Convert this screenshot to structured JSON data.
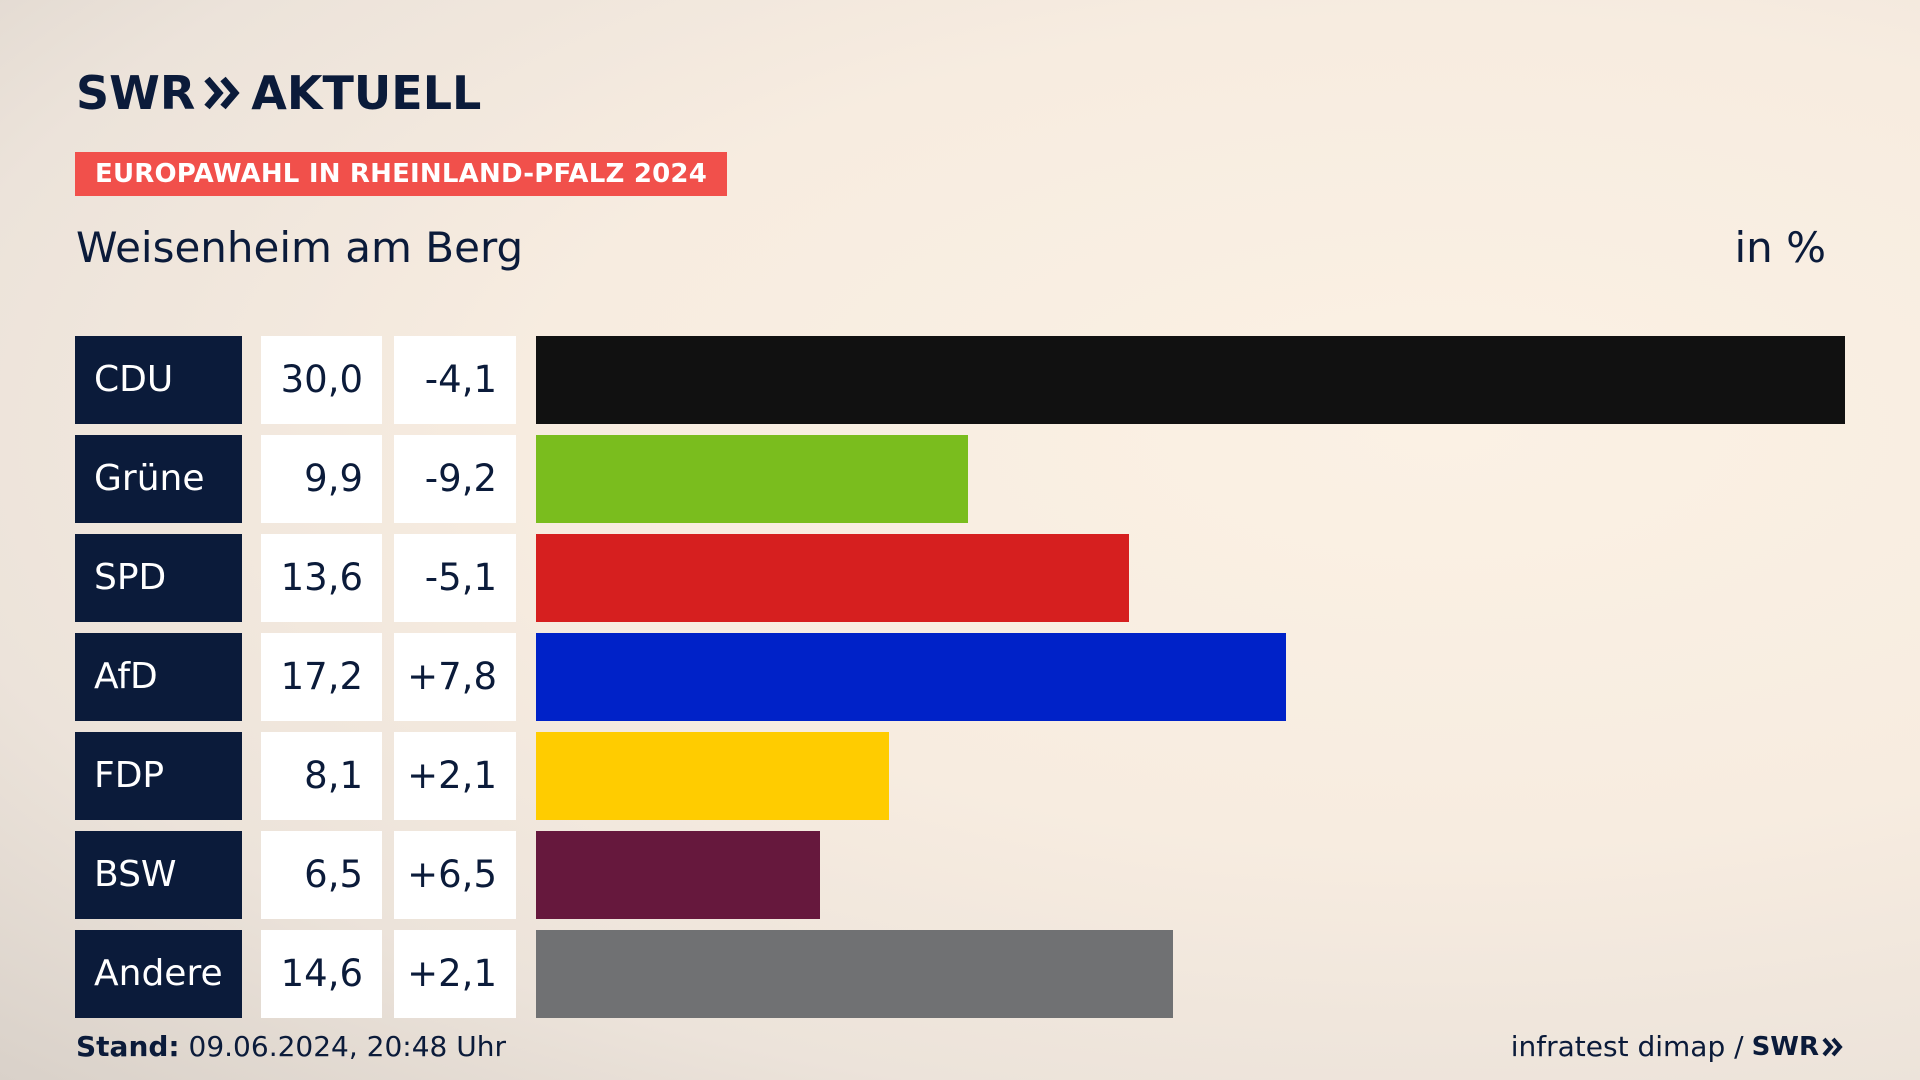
{
  "header": {
    "logo_left": "SWR",
    "logo_right": "AKTUELL",
    "tag": "EUROPAWAHL IN RHEINLAND-PFALZ 2024",
    "subtitle": "Weisenheim am Berg",
    "unit": "in %"
  },
  "colors": {
    "navy": "#0b1b3a",
    "tag_red": "#f1504b"
  },
  "chart_data": {
    "type": "bar",
    "orientation": "horizontal",
    "xlim": [
      0,
      30
    ],
    "rows": [
      {
        "party": "CDU",
        "value": 30.0,
        "value_label": "30,0",
        "diff_label": "-4,1",
        "color": "#111111"
      },
      {
        "party": "Grüne",
        "value": 9.9,
        "value_label": "9,9",
        "diff_label": "-9,2",
        "color": "#7abd1e"
      },
      {
        "party": "SPD",
        "value": 13.6,
        "value_label": "13,6",
        "diff_label": "-5,1",
        "color": "#d61f1f"
      },
      {
        "party": "AfD",
        "value": 17.2,
        "value_label": "17,2",
        "diff_label": "+7,8",
        "color": "#0022c8"
      },
      {
        "party": "FDP",
        "value": 8.1,
        "value_label": "8,1",
        "diff_label": "+2,1",
        "color": "#ffcc00"
      },
      {
        "party": "BSW",
        "value": 6.5,
        "value_label": "6,5",
        "diff_label": "+6,5",
        "color": "#66183d"
      },
      {
        "party": "Andere",
        "value": 14.6,
        "value_label": "14,6",
        "diff_label": "+2,1",
        "color": "#707173"
      }
    ]
  },
  "footer": {
    "stand_label": "Stand:",
    "stand_value": "09.06.2024, 20:48 Uhr",
    "source": "infratest dimap /",
    "brand": "SWR"
  }
}
